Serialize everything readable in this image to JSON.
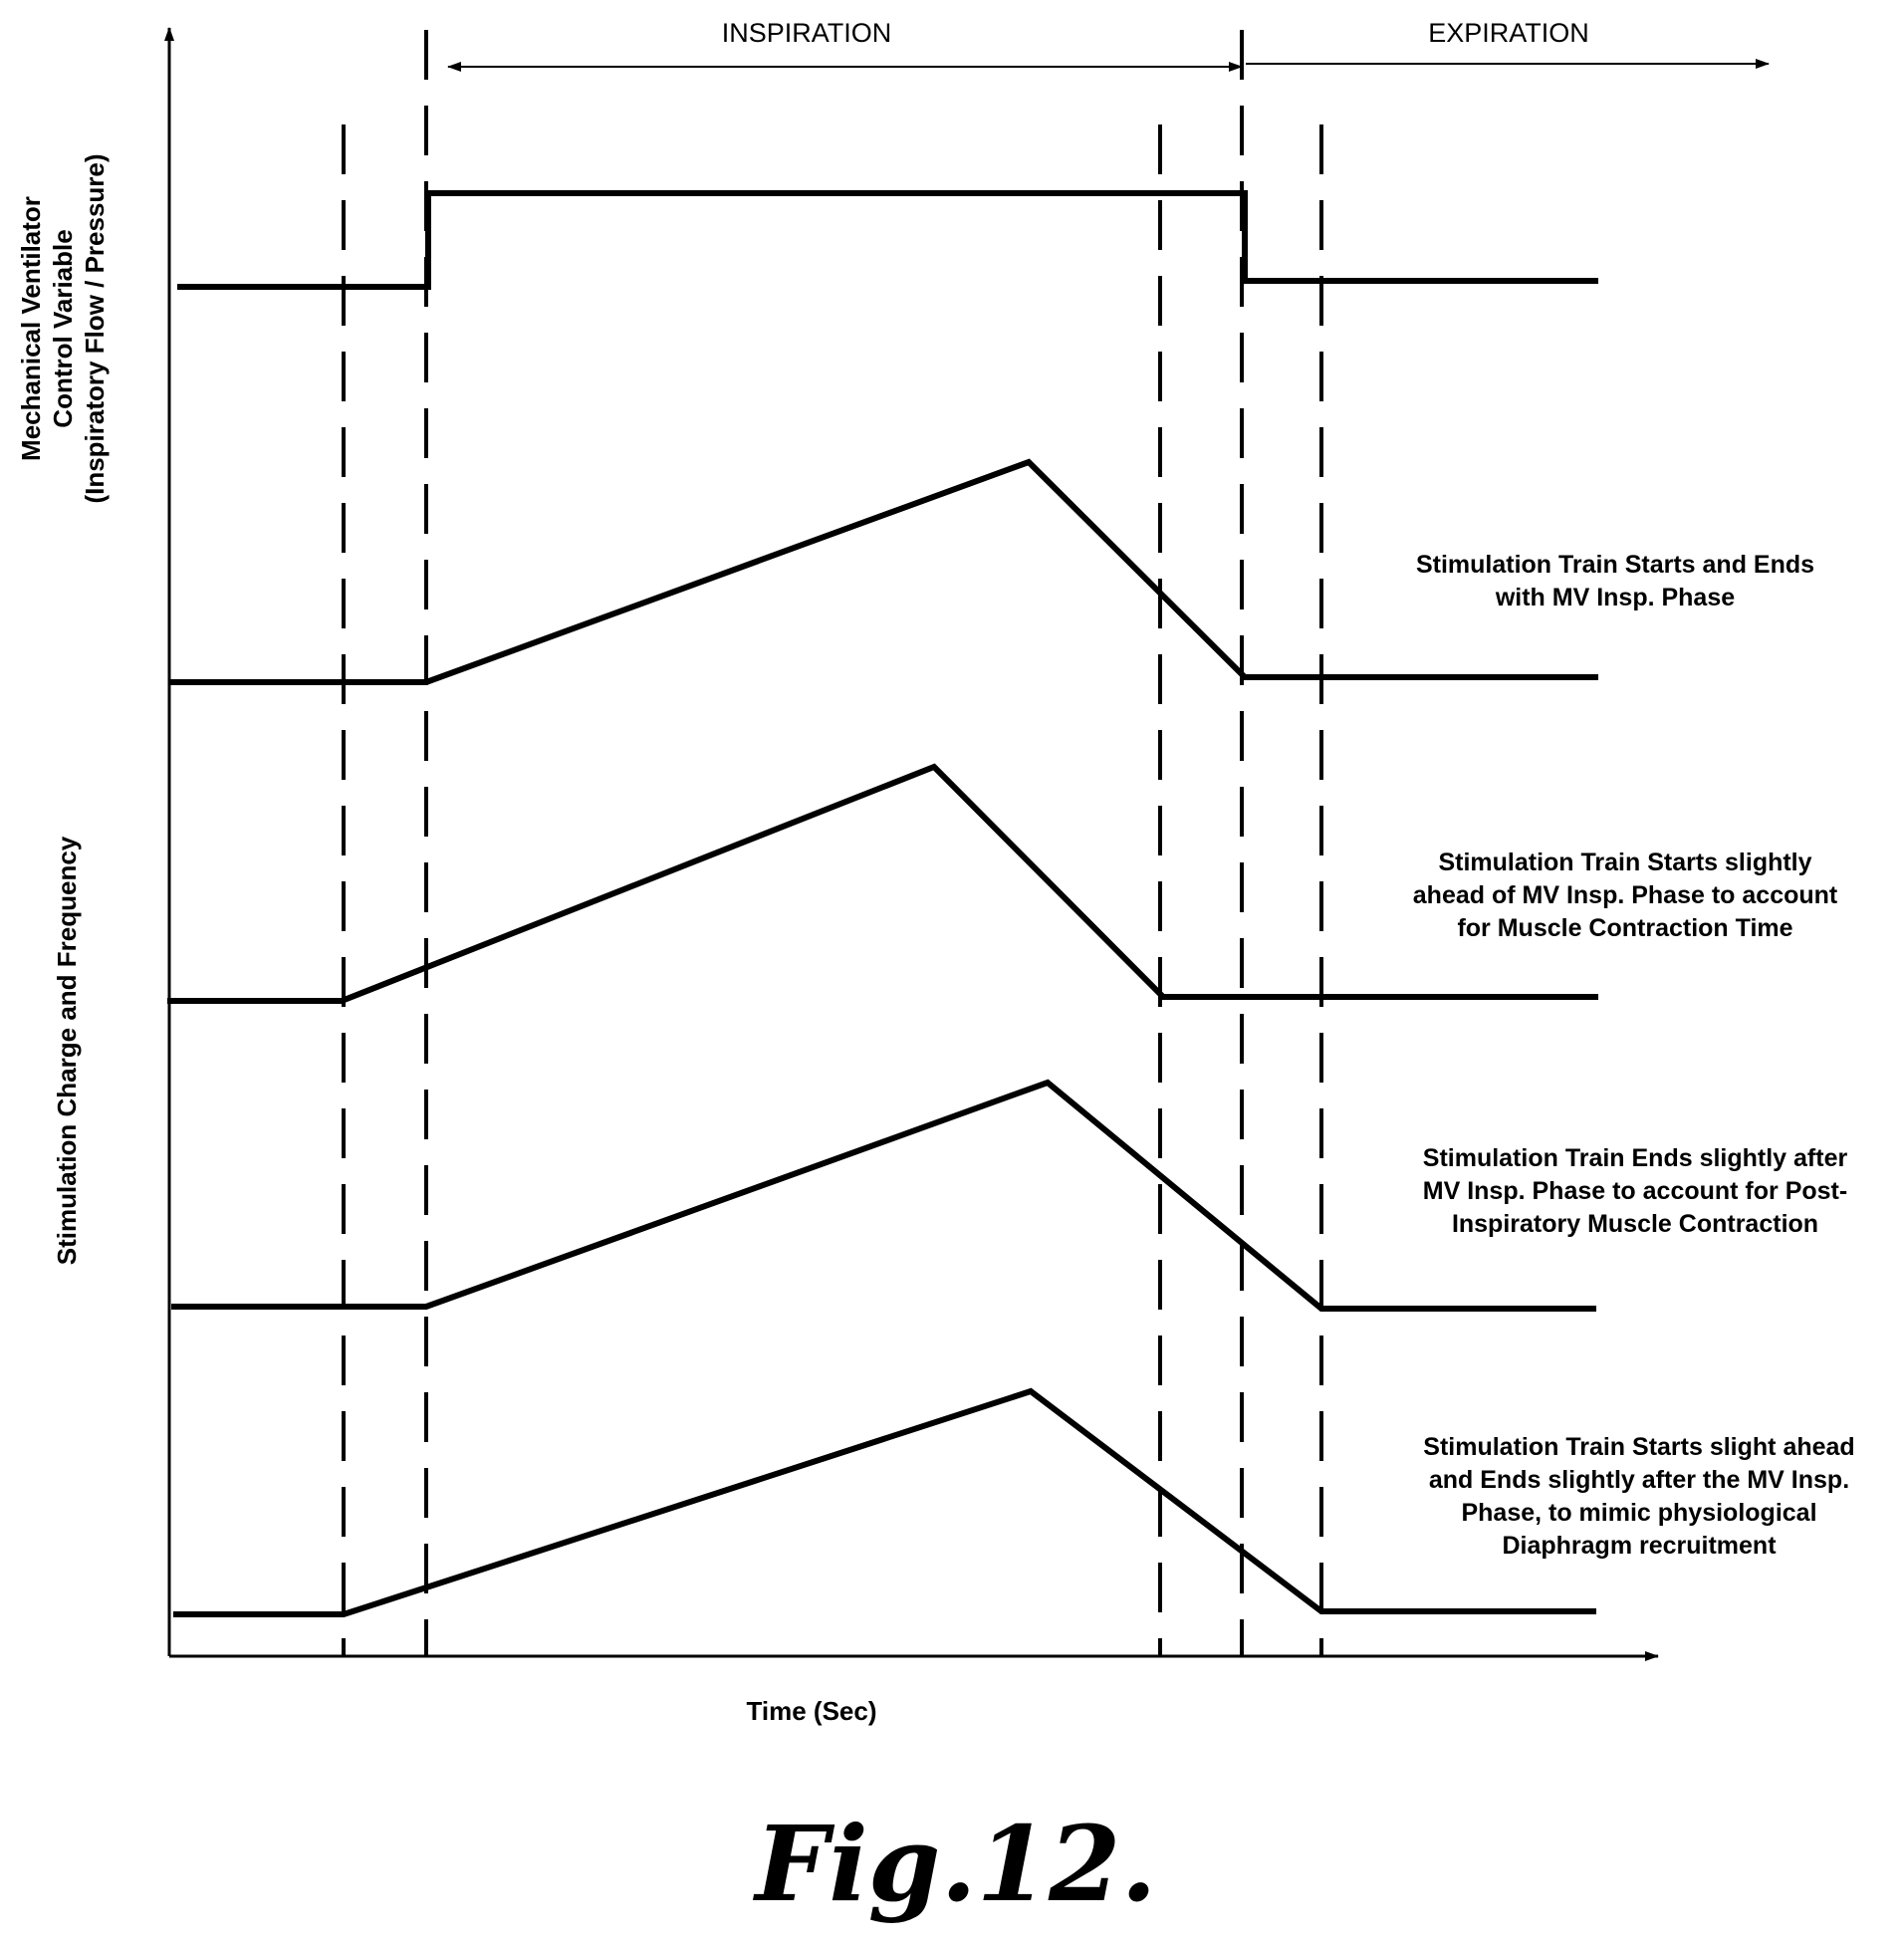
{
  "phases": {
    "inspiration": "INSPIRATION",
    "expiration": "EXPIRATION"
  },
  "y_axis_top": {
    "line1": "Mechanical Ventilator",
    "line2": "Control Variable",
    "line3": "(Inspiratory Flow / Pressure)"
  },
  "y_axis_bottom": "Stimulation Charge and Frequency",
  "x_axis": "Time (Sec)",
  "traces": [
    {
      "lines": [
        "Stimulation Train Starts and Ends",
        "with MV Insp. Phase"
      ]
    },
    {
      "lines": [
        "Stimulation Train Starts slightly",
        "ahead of MV Insp. Phase to account",
        "for Muscle Contraction Time"
      ]
    },
    {
      "lines": [
        "Stimulation Train Ends slightly after",
        "MV Insp. Phase to account for Post-",
        "Inspiratory Muscle Contraction"
      ]
    },
    {
      "lines": [
        "Stimulation Train Starts slight ahead",
        "and Ends slightly after the MV Insp.",
        "Phase, to mimic physiological",
        "Diaphragm recruitment"
      ]
    }
  ],
  "figure_label": "Fig.12.",
  "colors": {
    "ink": "#000000",
    "background": "#ffffff"
  }
}
